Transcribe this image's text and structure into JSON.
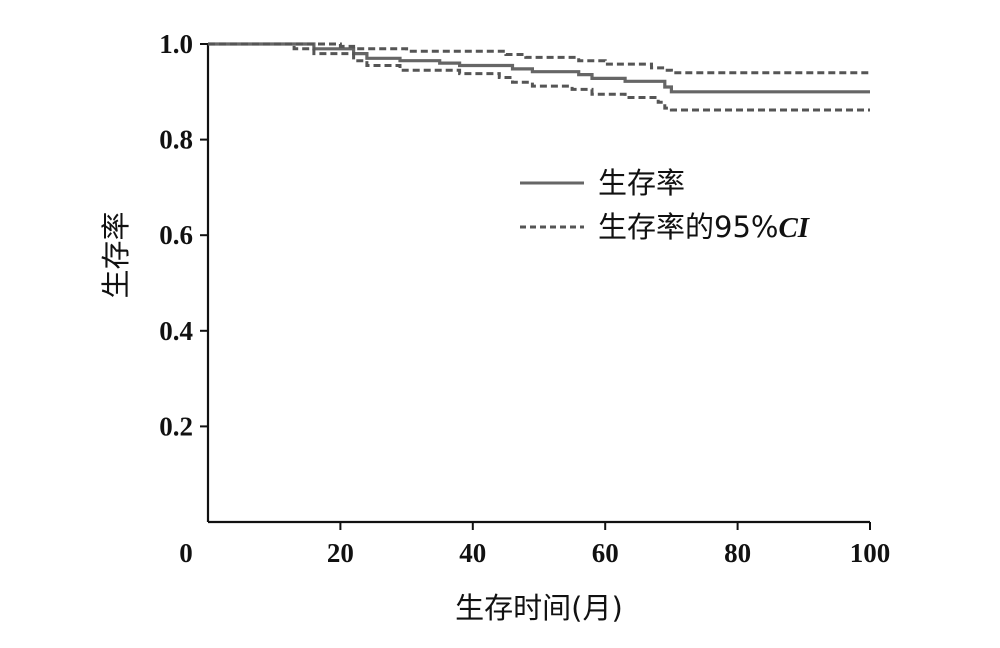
{
  "chart_data": {
    "type": "line",
    "title": "",
    "xlabel": "生存时间(月)",
    "ylabel": "生存率",
    "origin_label": "0",
    "xlim": [
      0,
      100
    ],
    "ylim": [
      0,
      1.0
    ],
    "x_ticks": [
      20,
      40,
      60,
      80,
      100
    ],
    "y_ticks": [
      0.2,
      0.4,
      0.6,
      0.8,
      1.0
    ],
    "x_tick_labels": [
      "20",
      "40",
      "60",
      "80",
      "100"
    ],
    "y_tick_labels": [
      "0.2",
      "0.4",
      "0.6",
      "0.8",
      "1.0"
    ],
    "grid": false,
    "legend_position": "center-right",
    "legend": {
      "survival_label": "生存率",
      "ci_label_prefix": "生存率的95%",
      "ci_label_italic": "CI"
    },
    "series": [
      {
        "name": "生存率",
        "style": "solid",
        "color": "#666666",
        "points": [
          [
            0,
            1.0
          ],
          [
            16,
            1.0
          ],
          [
            16,
            0.99
          ],
          [
            22,
            0.99
          ],
          [
            22,
            0.98
          ],
          [
            24,
            0.98
          ],
          [
            24,
            0.97
          ],
          [
            29,
            0.97
          ],
          [
            29,
            0.965
          ],
          [
            35,
            0.965
          ],
          [
            35,
            0.96
          ],
          [
            38,
            0.96
          ],
          [
            38,
            0.955
          ],
          [
            46,
            0.955
          ],
          [
            46,
            0.948
          ],
          [
            49,
            0.948
          ],
          [
            49,
            0.942
          ],
          [
            56,
            0.942
          ],
          [
            56,
            0.936
          ],
          [
            58,
            0.936
          ],
          [
            58,
            0.928
          ],
          [
            63,
            0.928
          ],
          [
            63,
            0.922
          ],
          [
            69,
            0.922
          ],
          [
            69,
            0.91
          ],
          [
            70,
            0.91
          ],
          [
            70,
            0.9
          ],
          [
            100,
            0.9
          ]
        ]
      },
      {
        "name": "生存率的95%CI",
        "style": "dashed",
        "color": "#555555",
        "points": [
          [
            0,
            1.0
          ],
          [
            20,
            1.0
          ],
          [
            20,
            0.995
          ],
          [
            22,
            0.995
          ],
          [
            22,
            0.99
          ],
          [
            30,
            0.99
          ],
          [
            30,
            0.985
          ],
          [
            45,
            0.985
          ],
          [
            45,
            0.978
          ],
          [
            48,
            0.978
          ],
          [
            48,
            0.972
          ],
          [
            56,
            0.972
          ],
          [
            56,
            0.965
          ],
          [
            60,
            0.965
          ],
          [
            60,
            0.958
          ],
          [
            67,
            0.958
          ],
          [
            67,
            0.95
          ],
          [
            69,
            0.95
          ],
          [
            69,
            0.945
          ],
          [
            70,
            0.945
          ],
          [
            70,
            0.94
          ],
          [
            100,
            0.94
          ]
        ]
      },
      {
        "name": "生存率的95%CI",
        "style": "dashed",
        "color": "#555555",
        "points": [
          [
            0,
            1.0
          ],
          [
            13,
            1.0
          ],
          [
            13,
            0.99
          ],
          [
            16,
            0.99
          ],
          [
            16,
            0.98
          ],
          [
            22,
            0.98
          ],
          [
            22,
            0.965
          ],
          [
            24,
            0.965
          ],
          [
            24,
            0.955
          ],
          [
            29,
            0.955
          ],
          [
            29,
            0.945
          ],
          [
            38,
            0.945
          ],
          [
            38,
            0.938
          ],
          [
            44,
            0.938
          ],
          [
            44,
            0.93
          ],
          [
            46,
            0.93
          ],
          [
            46,
            0.92
          ],
          [
            49,
            0.92
          ],
          [
            49,
            0.912
          ],
          [
            55,
            0.912
          ],
          [
            55,
            0.905
          ],
          [
            58,
            0.905
          ],
          [
            58,
            0.895
          ],
          [
            63,
            0.895
          ],
          [
            63,
            0.888
          ],
          [
            68,
            0.888
          ],
          [
            68,
            0.878
          ],
          [
            69,
            0.878
          ],
          [
            69,
            0.866
          ],
          [
            70,
            0.866
          ],
          [
            70,
            0.862
          ],
          [
            100,
            0.862
          ]
        ]
      }
    ]
  }
}
